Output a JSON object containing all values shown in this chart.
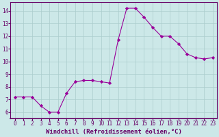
{
  "x": [
    0,
    1,
    2,
    3,
    4,
    5,
    6,
    7,
    8,
    9,
    10,
    11,
    12,
    13,
    14,
    15,
    16,
    17,
    18,
    19,
    20,
    21,
    22,
    23
  ],
  "y": [
    7.2,
    7.2,
    7.2,
    6.5,
    6.0,
    6.0,
    7.5,
    8.4,
    8.5,
    8.5,
    8.4,
    8.3,
    11.7,
    14.2,
    14.2,
    13.5,
    12.7,
    12.0,
    12.0,
    11.4,
    10.6,
    10.3,
    10.2,
    10.3
  ],
  "line_color": "#990099",
  "marker": "D",
  "marker_size": 2.2,
  "bg_color": "#cce8e8",
  "grid_color": "#aacccc",
  "xlabel": "Windchill (Refroidissement éolien,°C)",
  "xlim": [
    -0.5,
    23.5
  ],
  "ylim": [
    5.5,
    14.7
  ],
  "yticks": [
    6,
    7,
    8,
    9,
    10,
    11,
    12,
    13,
    14
  ],
  "xticks": [
    0,
    1,
    2,
    3,
    4,
    5,
    6,
    7,
    8,
    9,
    10,
    11,
    12,
    13,
    14,
    15,
    16,
    17,
    18,
    19,
    20,
    21,
    22,
    23
  ],
  "tick_fontsize": 5.5,
  "xlabel_fontsize": 6.5,
  "tick_color": "#660066",
  "label_color": "#660066",
  "spine_color": "#660066"
}
